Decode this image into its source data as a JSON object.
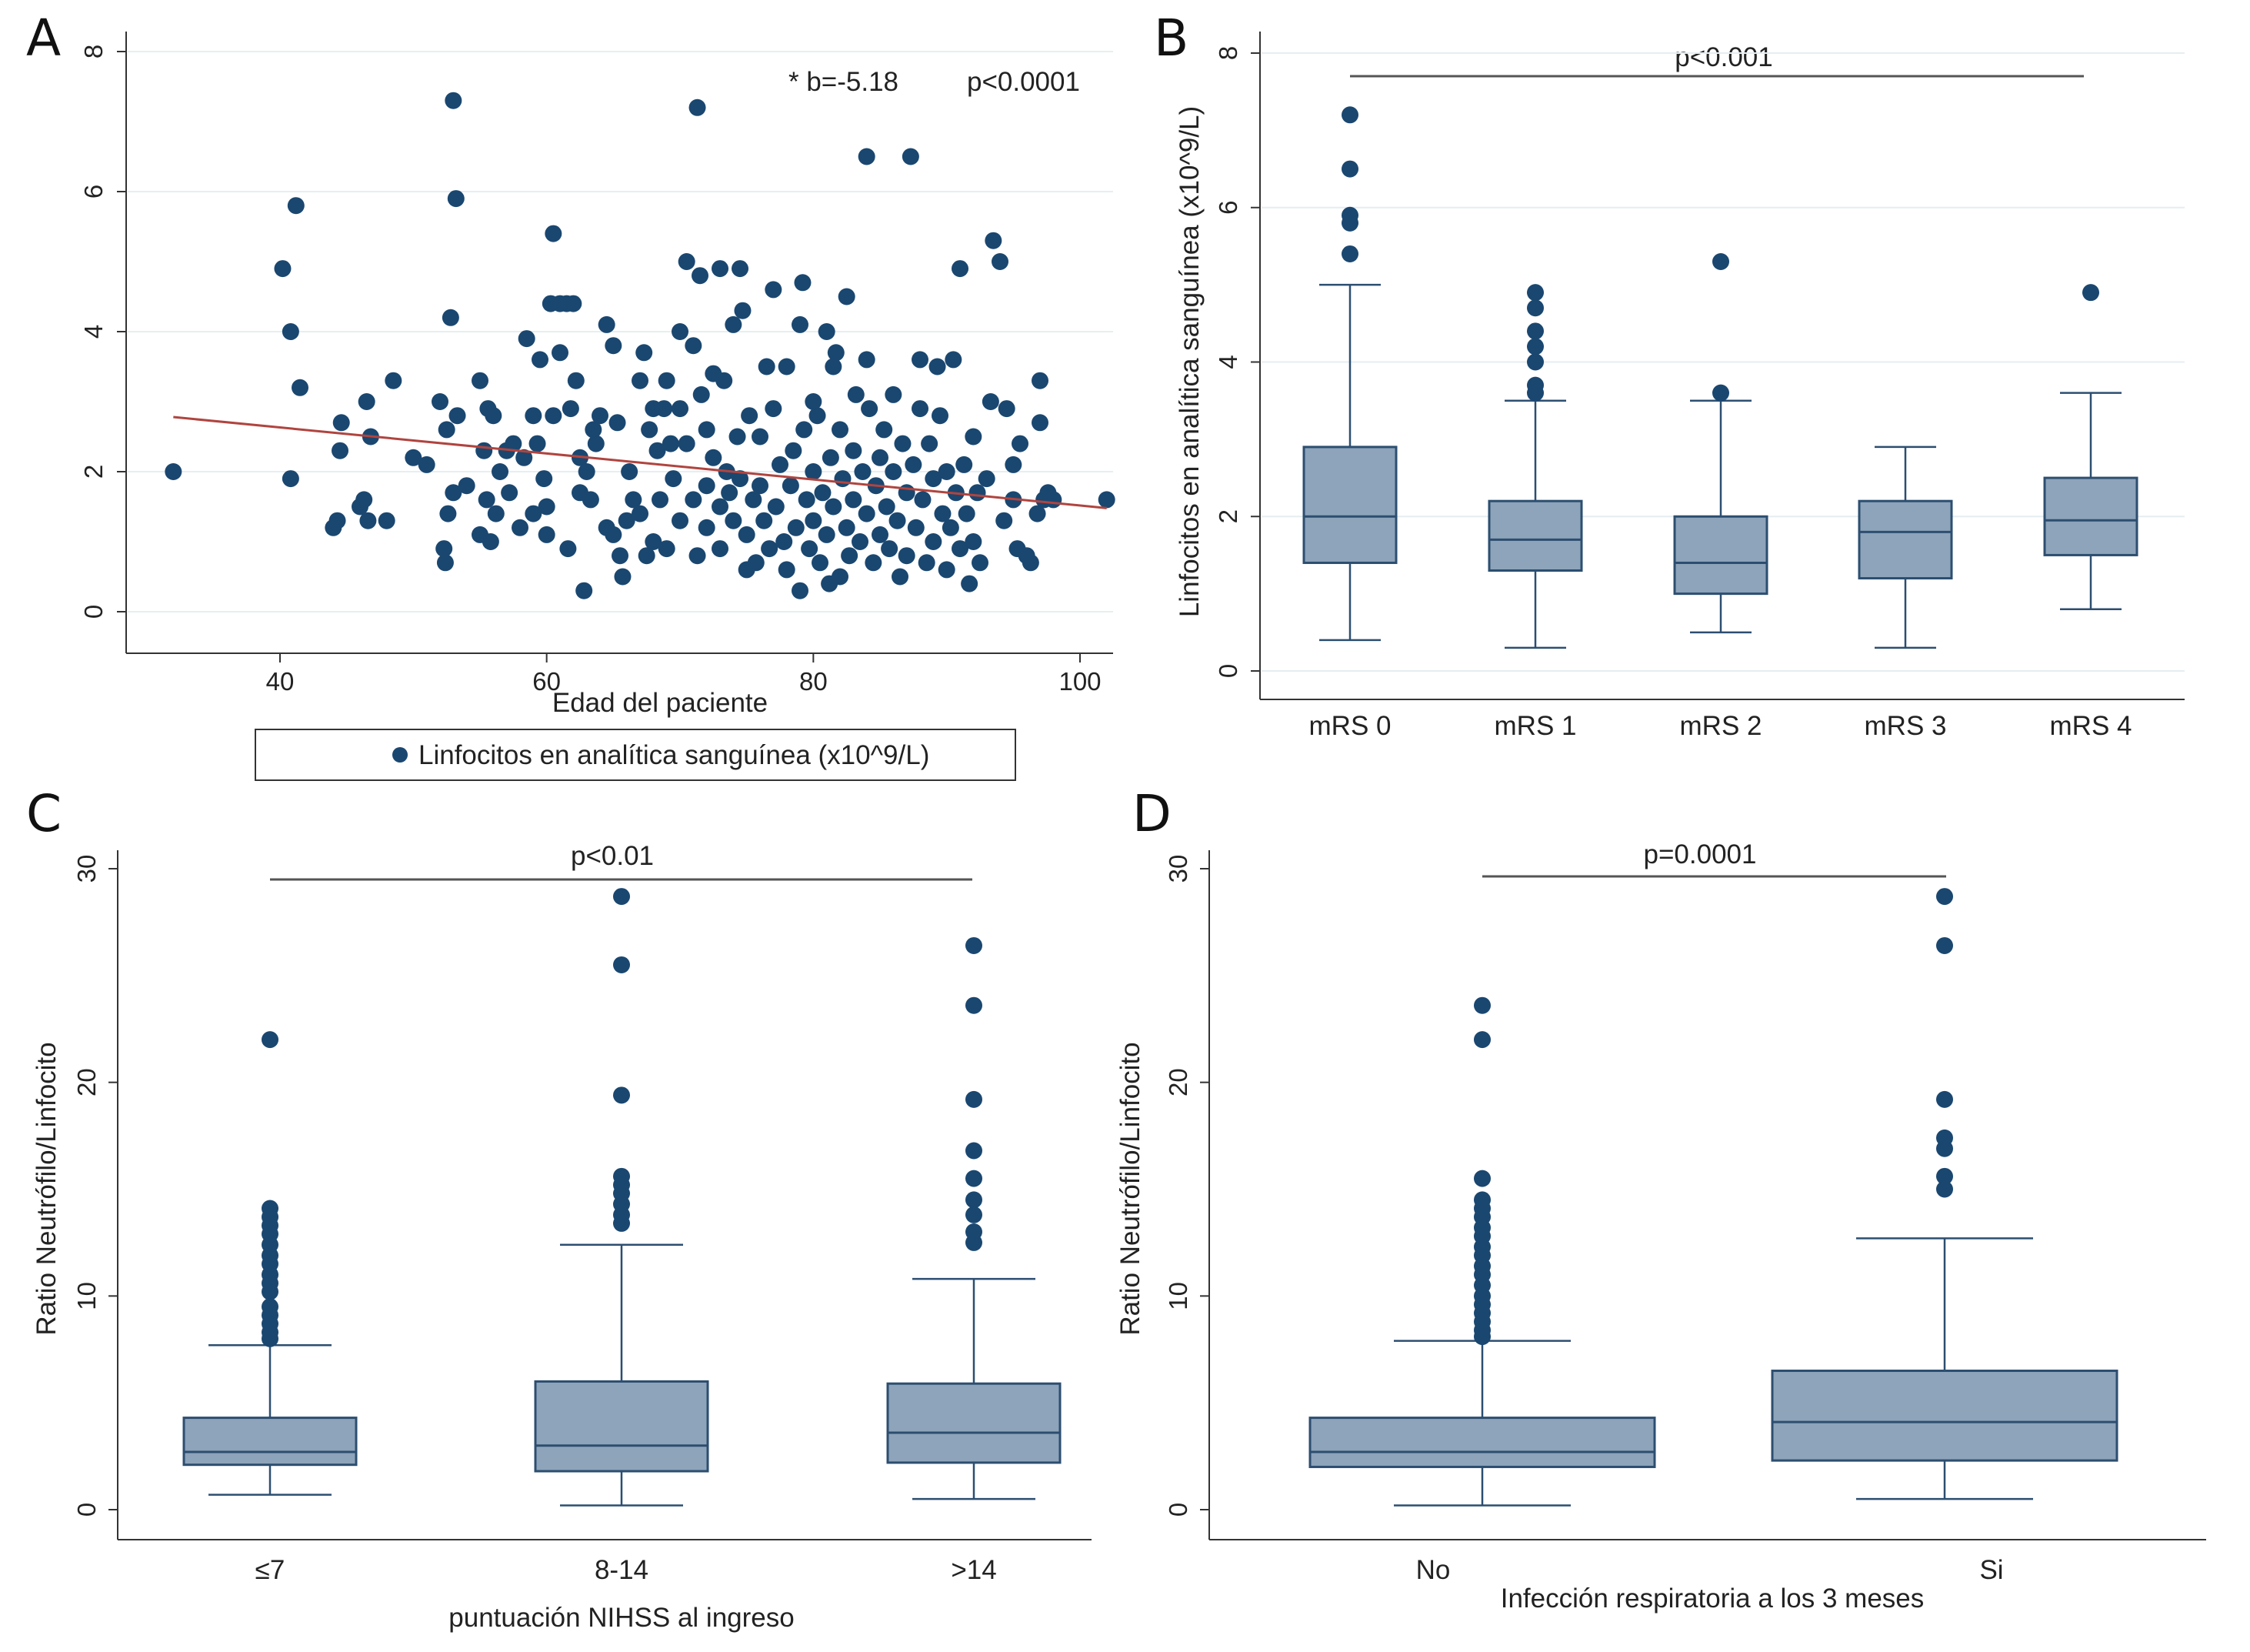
{
  "colors": {
    "marker": "#1a4770",
    "box_fill": "#8ea4ba",
    "box_stroke": "#2c4e70",
    "fit_line": "#b0443f",
    "grid": "#e6eef1",
    "axis": "#333333"
  },
  "chart_data": [
    {
      "panel": "A",
      "type": "scatter",
      "xlabel": "Edad del paciente",
      "ylabel": "",
      "xlim": [
        30,
        103
      ],
      "ylim": [
        0,
        8
      ],
      "xticks": [
        "40",
        "60",
        "80",
        "100"
      ],
      "yticks": [
        "0",
        "2",
        "4",
        "6",
        "8"
      ],
      "grid": true,
      "legend": {
        "position": "bottom",
        "entries": [
          "Linfocitos en analítica sanguínea (x10^9/L)"
        ]
      },
      "annotation_b": "* b=-5.18",
      "annotation_p": "p<0.0001",
      "fit_line": [
        [
          32,
          2.78
        ],
        [
          102,
          1.48
        ]
      ],
      "points": [
        [
          32,
          2.0
        ],
        [
          40.2,
          4.9
        ],
        [
          40.8,
          4.0
        ],
        [
          41.2,
          5.8
        ],
        [
          40.8,
          1.9
        ],
        [
          41.5,
          3.2
        ],
        [
          44,
          1.2
        ],
        [
          44.3,
          1.3
        ],
        [
          44.5,
          2.3
        ],
        [
          44.6,
          2.7
        ],
        [
          46,
          1.5
        ],
        [
          46.3,
          1.6
        ],
        [
          46.5,
          3.0
        ],
        [
          46.6,
          1.3
        ],
        [
          46.8,
          2.5
        ],
        [
          48,
          1.3
        ],
        [
          48.5,
          3.3
        ],
        [
          50,
          2.2
        ],
        [
          51,
          2.1
        ],
        [
          52,
          3.0
        ],
        [
          52.3,
          0.9
        ],
        [
          52.4,
          0.7
        ],
        [
          52.5,
          2.6
        ],
        [
          52.6,
          1.4
        ],
        [
          52.8,
          4.2
        ],
        [
          53,
          7.3
        ],
        [
          53.2,
          5.9
        ],
        [
          53.3,
          2.8
        ],
        [
          53,
          1.7
        ],
        [
          54,
          1.8
        ],
        [
          55,
          3.3
        ],
        [
          55,
          1.1
        ],
        [
          55.3,
          2.3
        ],
        [
          55.5,
          1.6
        ],
        [
          55.6,
          2.9
        ],
        [
          55.8,
          1.0
        ],
        [
          56,
          2.8
        ],
        [
          56.2,
          1.4
        ],
        [
          56.5,
          2.0
        ],
        [
          57,
          2.3
        ],
        [
          57.2,
          1.7
        ],
        [
          57.5,
          2.4
        ],
        [
          58,
          1.2
        ],
        [
          58.3,
          2.2
        ],
        [
          58.5,
          3.9
        ],
        [
          59,
          2.8
        ],
        [
          59,
          1.4
        ],
        [
          59.3,
          2.4
        ],
        [
          59.5,
          3.6
        ],
        [
          59.8,
          1.9
        ],
        [
          60,
          1.5
        ],
        [
          60,
          1.1
        ],
        [
          60.3,
          4.4
        ],
        [
          60.5,
          2.8
        ],
        [
          60.5,
          5.4
        ],
        [
          61,
          4.4
        ],
        [
          61,
          3.7
        ],
        [
          61.5,
          4.4
        ],
        [
          61.6,
          0.9
        ],
        [
          61.8,
          2.9
        ],
        [
          62,
          4.4
        ],
        [
          62.2,
          3.3
        ],
        [
          62.5,
          2.2
        ],
        [
          62.5,
          1.7
        ],
        [
          62.8,
          0.3
        ],
        [
          63,
          2.0
        ],
        [
          63.3,
          1.6
        ],
        [
          63.5,
          2.6
        ],
        [
          63.7,
          2.4
        ],
        [
          64,
          2.8
        ],
        [
          64.5,
          4.1
        ],
        [
          64.5,
          1.2
        ],
        [
          65,
          3.8
        ],
        [
          65,
          1.1
        ],
        [
          65.3,
          2.7
        ],
        [
          65.5,
          0.8
        ],
        [
          65.7,
          0.5
        ],
        [
          66,
          1.3
        ],
        [
          66.2,
          2.0
        ],
        [
          66.5,
          1.6
        ],
        [
          67,
          3.3
        ],
        [
          67,
          1.4
        ],
        [
          67.3,
          3.7
        ],
        [
          67.5,
          0.8
        ],
        [
          67.7,
          2.6
        ],
        [
          68,
          2.9
        ],
        [
          68,
          1.0
        ],
        [
          68.3,
          2.3
        ],
        [
          68.5,
          1.6
        ],
        [
          68.8,
          2.9
        ],
        [
          69,
          3.3
        ],
        [
          69,
          0.9
        ],
        [
          69.3,
          2.4
        ],
        [
          69.5,
          1.9
        ],
        [
          70,
          4.0
        ],
        [
          70,
          2.9
        ],
        [
          70,
          1.3
        ],
        [
          70.5,
          5.0
        ],
        [
          70.5,
          2.4
        ],
        [
          71,
          3.8
        ],
        [
          71,
          1.6
        ],
        [
          71.3,
          7.2
        ],
        [
          71.3,
          0.8
        ],
        [
          71.5,
          4.8
        ],
        [
          71.6,
          3.1
        ],
        [
          72,
          2.6
        ],
        [
          72,
          1.2
        ],
        [
          72,
          1.8
        ],
        [
          72.5,
          3.4
        ],
        [
          72.5,
          2.2
        ],
        [
          73,
          4.9
        ],
        [
          73,
          1.5
        ],
        [
          73,
          0.9
        ],
        [
          73.3,
          3.3
        ],
        [
          73.5,
          2.0
        ],
        [
          73.7,
          1.7
        ],
        [
          74,
          4.1
        ],
        [
          74,
          1.3
        ],
        [
          74.3,
          2.5
        ],
        [
          74.5,
          4.9
        ],
        [
          74.5,
          1.9
        ],
        [
          74.7,
          4.3
        ],
        [
          75,
          0.6
        ],
        [
          75,
          1.1
        ],
        [
          75.2,
          2.8
        ],
        [
          75.5,
          1.6
        ],
        [
          75.7,
          0.7
        ],
        [
          76,
          1.8
        ],
        [
          76,
          2.5
        ],
        [
          76.3,
          1.3
        ],
        [
          76.5,
          3.5
        ],
        [
          76.7,
          0.9
        ],
        [
          77,
          4.6
        ],
        [
          77,
          2.9
        ],
        [
          77.2,
          1.5
        ],
        [
          77.5,
          2.1
        ],
        [
          77.8,
          1.0
        ],
        [
          78,
          3.5
        ],
        [
          78,
          0.6
        ],
        [
          78.3,
          1.8
        ],
        [
          78.5,
          2.3
        ],
        [
          78.7,
          1.2
        ],
        [
          79,
          4.1
        ],
        [
          79,
          0.3
        ],
        [
          79.2,
          4.7
        ],
        [
          79.3,
          2.6
        ],
        [
          79.5,
          1.6
        ],
        [
          79.7,
          0.9
        ],
        [
          80,
          3.0
        ],
        [
          80,
          2.0
        ],
        [
          80,
          1.3
        ],
        [
          80.3,
          2.8
        ],
        [
          80.5,
          0.7
        ],
        [
          80.7,
          1.7
        ],
        [
          81,
          4.0
        ],
        [
          81,
          1.1
        ],
        [
          81.2,
          0.4
        ],
        [
          81.3,
          2.2
        ],
        [
          81.5,
          3.5
        ],
        [
          81.5,
          1.5
        ],
        [
          81.7,
          3.7
        ],
        [
          82,
          0.5
        ],
        [
          82,
          2.6
        ],
        [
          82.2,
          1.9
        ],
        [
          82.5,
          4.5
        ],
        [
          82.5,
          1.2
        ],
        [
          82.7,
          0.8
        ],
        [
          83,
          2.3
        ],
        [
          83,
          1.6
        ],
        [
          83.2,
          3.1
        ],
        [
          83.5,
          1.0
        ],
        [
          83.7,
          2.0
        ],
        [
          84,
          3.6
        ],
        [
          84,
          6.5
        ],
        [
          84,
          1.4
        ],
        [
          84.2,
          2.9
        ],
        [
          84.5,
          0.7
        ],
        [
          84.7,
          1.8
        ],
        [
          85,
          2.2
        ],
        [
          85,
          1.1
        ],
        [
          85.3,
          2.6
        ],
        [
          85.5,
          1.5
        ],
        [
          85.7,
          0.9
        ],
        [
          86,
          3.1
        ],
        [
          86,
          2.0
        ],
        [
          86.3,
          1.3
        ],
        [
          86.5,
          0.5
        ],
        [
          86.7,
          2.4
        ],
        [
          87,
          1.7
        ],
        [
          87,
          0.8
        ],
        [
          87.3,
          6.5
        ],
        [
          87.5,
          2.1
        ],
        [
          87.7,
          1.2
        ],
        [
          88,
          3.6
        ],
        [
          88,
          2.9
        ],
        [
          88.2,
          1.6
        ],
        [
          88.5,
          0.7
        ],
        [
          88.7,
          2.4
        ],
        [
          89,
          1.0
        ],
        [
          89,
          1.9
        ],
        [
          89.3,
          3.5
        ],
        [
          89.5,
          2.8
        ],
        [
          89.7,
          1.4
        ],
        [
          90,
          2.0
        ],
        [
          90,
          0.6
        ],
        [
          90.3,
          1.2
        ],
        [
          90.5,
          3.6
        ],
        [
          90.7,
          1.7
        ],
        [
          91,
          4.9
        ],
        [
          91,
          0.9
        ],
        [
          91.3,
          2.1
        ],
        [
          91.5,
          1.4
        ],
        [
          91.7,
          0.4
        ],
        [
          92,
          2.5
        ],
        [
          92,
          1.0
        ],
        [
          92.3,
          1.7
        ],
        [
          92.5,
          0.7
        ],
        [
          93,
          1.9
        ],
        [
          93.3,
          3.0
        ],
        [
          93.5,
          5.3
        ],
        [
          94,
          5.0
        ],
        [
          94.3,
          1.3
        ],
        [
          94.5,
          2.9
        ],
        [
          95,
          2.1
        ],
        [
          95,
          1.6
        ],
        [
          95.3,
          0.9
        ],
        [
          95.5,
          2.4
        ],
        [
          96,
          0.8
        ],
        [
          96.3,
          0.7
        ],
        [
          96.8,
          1.4
        ],
        [
          97,
          3.3
        ],
        [
          97,
          2.7
        ],
        [
          97.3,
          1.6
        ],
        [
          97.6,
          1.7
        ],
        [
          98,
          1.6
        ],
        [
          102,
          1.6
        ]
      ]
    },
    {
      "panel": "B",
      "type": "box",
      "ylabel": "Linfocitos en analítica sanguínea (x10^9/L)",
      "ylim": [
        0,
        8
      ],
      "yticks": [
        "0",
        "2",
        "4",
        "6",
        "8"
      ],
      "grid": true,
      "annotation_p": "p<0.001",
      "categories": [
        "mRS 0",
        "mRS 1",
        "mRS 2",
        "mRS 3",
        "mRS 4"
      ],
      "boxes": [
        {
          "min": 0.4,
          "q1": 1.4,
          "median": 2.0,
          "q3": 2.9,
          "max": 5.0,
          "outliers": [
            5.4,
            5.8,
            5.9,
            6.5,
            7.2
          ]
        },
        {
          "min": 0.3,
          "q1": 1.3,
          "median": 1.7,
          "q3": 2.2,
          "max": 3.5,
          "outliers": [
            3.6,
            3.7,
            4.0,
            4.2,
            4.4,
            4.7,
            4.9
          ]
        },
        {
          "min": 0.5,
          "q1": 1.0,
          "median": 1.4,
          "q3": 2.0,
          "max": 3.5,
          "outliers": [
            3.6,
            5.3
          ]
        },
        {
          "min": 0.3,
          "q1": 1.2,
          "median": 1.8,
          "q3": 2.2,
          "max": 2.9,
          "outliers": []
        },
        {
          "min": 0.8,
          "q1": 1.5,
          "median": 1.95,
          "q3": 2.5,
          "max": 3.6,
          "outliers": [
            4.9
          ]
        }
      ]
    },
    {
      "panel": "C",
      "type": "box",
      "xlabel": "puntuación NIHSS al ingreso",
      "ylabel": "Ratio Neutrófilo/Linfocito",
      "ylim": [
        0,
        30
      ],
      "yticks": [
        "0",
        "10",
        "20",
        "30"
      ],
      "grid": false,
      "annotation_p": "p<0.01",
      "categories": [
        "≤7",
        "8-14",
        ">14"
      ],
      "boxes": [
        {
          "min": 0.7,
          "q1": 2.1,
          "median": 2.7,
          "q3": 4.3,
          "max": 7.7,
          "outliers": [
            8.0,
            8.3,
            8.7,
            9.1,
            9.5,
            10.2,
            10.6,
            11.0,
            11.5,
            11.9,
            12.4,
            12.9,
            13.3,
            13.7,
            14.1,
            22.0
          ]
        },
        {
          "min": 0.2,
          "q1": 1.8,
          "median": 3.0,
          "q3": 6.0,
          "max": 12.4,
          "outliers": [
            13.4,
            13.8,
            14.3,
            14.8,
            15.2,
            15.6,
            19.4,
            25.5,
            28.7
          ]
        },
        {
          "min": 0.5,
          "q1": 2.2,
          "median": 3.6,
          "q3": 5.9,
          "max": 10.8,
          "outliers": [
            12.5,
            13.0,
            13.8,
            14.5,
            15.5,
            16.8,
            19.2,
            23.6,
            26.4
          ]
        }
      ]
    },
    {
      "panel": "D",
      "type": "box",
      "xlabel": "Infección respiratoria a los 3 meses",
      "ylabel": "Ratio Neutrófilo/Linfocito",
      "ylim": [
        0,
        30
      ],
      "yticks": [
        "0",
        "10",
        "20",
        "30"
      ],
      "grid": false,
      "annotation_p": "p=0.0001",
      "categories": [
        "No",
        "Si"
      ],
      "boxes": [
        {
          "min": 0.2,
          "q1": 2.0,
          "median": 2.7,
          "q3": 4.3,
          "max": 7.9,
          "outliers": [
            8.1,
            8.4,
            8.8,
            9.2,
            9.6,
            10.0,
            10.5,
            11.0,
            11.4,
            11.9,
            12.3,
            12.8,
            13.2,
            13.7,
            14.1,
            14.5,
            15.5,
            22.0,
            23.6
          ]
        },
        {
          "min": 0.5,
          "q1": 2.3,
          "median": 4.1,
          "q3": 6.5,
          "max": 12.7,
          "outliers": [
            15.0,
            15.6,
            16.9,
            17.4,
            19.2,
            26.4,
            28.7
          ]
        }
      ]
    }
  ]
}
